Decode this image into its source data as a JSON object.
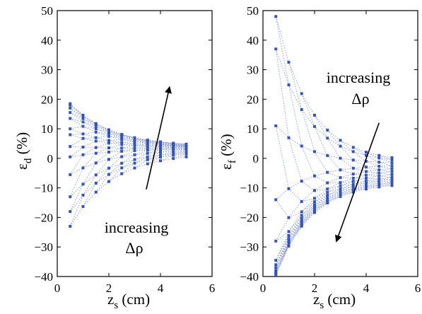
{
  "chart_data": [
    {
      "type": "line",
      "xlabel_main": "z",
      "xlabel_sub": "s",
      "xlabel_unit": " (cm)",
      "ylabel_main": "ε",
      "ylabel_sub": "d",
      "ylabel_unit": " (%)",
      "xlim": [
        0,
        6
      ],
      "ylim": [
        -40,
        50
      ],
      "x_ticks": [
        "0",
        "2",
        "4",
        "6"
      ],
      "y_ticks": [
        "−40",
        "−30",
        "−20",
        "−10",
        "0",
        "10",
        "20",
        "30",
        "40",
        "50"
      ],
      "x_tick_values": [
        0,
        2,
        4,
        6
      ],
      "y_tick_values": [
        -40,
        -30,
        -20,
        -10,
        0,
        10,
        20,
        30,
        40,
        50
      ],
      "grid": false,
      "marker_color": "#3355bb",
      "line_color": "#8899cc",
      "annotation": {
        "line1": "increasing",
        "line2": "Δρ",
        "arrow_from": [
          3.45,
          -10.5
        ],
        "arrow_to": [
          4.35,
          24
        ]
      },
      "x": [
        0.5,
        1.0,
        1.5,
        2.0,
        2.5,
        3.0,
        3.5,
        4.0,
        4.5,
        5.0
      ],
      "curve_start": [
        -23,
        -18,
        -13,
        -5.5,
        0.5,
        4,
        8,
        10,
        13.5,
        15.5,
        17,
        18,
        18.5
      ],
      "curve_end": [
        0.5,
        1.5,
        2,
        2.5,
        3,
        3.3,
        3.6,
        3.9,
        4.1,
        4.3,
        4.5,
        4.7,
        4.8
      ],
      "curve_rate": 0.62
    },
    {
      "type": "line",
      "xlabel_main": "z",
      "xlabel_sub": "s",
      "xlabel_unit": " (cm)",
      "ylabel_main": "ε",
      "ylabel_sub": "f",
      "ylabel_unit": " (%)",
      "xlim": [
        0,
        6
      ],
      "ylim": [
        -40,
        50
      ],
      "x_ticks": [
        "0",
        "2",
        "4",
        "6"
      ],
      "y_ticks": [
        "−40",
        "−30",
        "−20",
        "−10",
        "0",
        "10",
        "20",
        "30",
        "40",
        "50"
      ],
      "x_tick_values": [
        0,
        2,
        4,
        6
      ],
      "y_tick_values": [
        -40,
        -30,
        -20,
        -10,
        0,
        10,
        20,
        30,
        40,
        50
      ],
      "grid": false,
      "marker_color": "#3355bb",
      "line_color": "#8899cc",
      "annotation": {
        "line1": "increasing",
        "line2": "Δρ",
        "arrow_from": [
          4.5,
          12
        ],
        "arrow_to": [
          2.85,
          -28
        ]
      },
      "x": [
        0.5,
        1.0,
        1.5,
        2.0,
        2.5,
        3.0,
        3.5,
        4.0,
        4.5,
        5.0
      ],
      "curve_start": [
        48,
        37,
        11,
        -14,
        -28,
        -34.5,
        -36,
        -37,
        -38,
        -38.5,
        -39,
        -39.5
      ],
      "curve_end": [
        0.2,
        -0.5,
        -1.5,
        -2.5,
        -3.5,
        -4.5,
        -5.5,
        -6.5,
        -7.2,
        -8,
        -8.6,
        -9.2
      ],
      "curve_rate": 0.75
    }
  ]
}
